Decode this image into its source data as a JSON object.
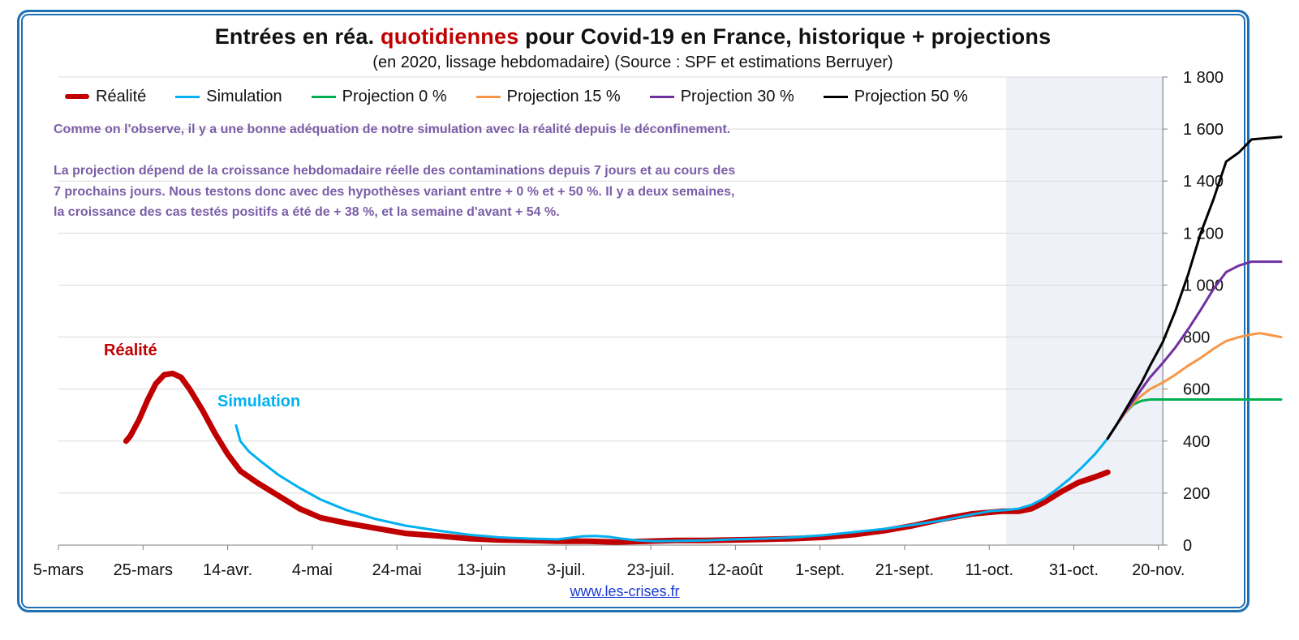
{
  "chart_data": {
    "type": "line",
    "title_parts": [
      "Entrées en réa. ",
      "quotidiennes",
      " pour Covid-19 en France, historique + projections"
    ],
    "subtitle": "(en 2020, lissage hebdomadaire) (Source : SPF et estimations Berruyer)",
    "xlabel": "",
    "ylabel": "",
    "x_tick_labels": [
      "5-mars",
      "25-mars",
      "14-avr.",
      "4-mai",
      "24-mai",
      "13-juin",
      "3-juil.",
      "23-juil.",
      "12-août",
      "1-sept.",
      "21-sept.",
      "11-oct.",
      "31-oct.",
      "20-nov."
    ],
    "x_range_days": [
      0,
      261
    ],
    "ylim": [
      0,
      1800
    ],
    "y_ticks": [
      0,
      200,
      400,
      600,
      800,
      1000,
      1200,
      1400,
      1600,
      1800
    ],
    "y_tick_labels": [
      "0",
      "200",
      "400",
      "600",
      "800",
      "1 000",
      "1 200",
      "1 400",
      "1 600",
      "1 800"
    ],
    "y_axis_position": "right",
    "grid": true,
    "legend_position": "top-left",
    "projection_shade_days": [
      224,
      261
    ],
    "projection_shade_color": "#eef2f8",
    "series": [
      {
        "name": "Réalité",
        "color": "#c00000",
        "width": 7,
        "points": [
          [
            16,
            400
          ],
          [
            17,
            420
          ],
          [
            19,
            480
          ],
          [
            21,
            555
          ],
          [
            23,
            620
          ],
          [
            25,
            655
          ],
          [
            27,
            660
          ],
          [
            29,
            645
          ],
          [
            31,
            600
          ],
          [
            34,
            520
          ],
          [
            37,
            430
          ],
          [
            40,
            350
          ],
          [
            43,
            285
          ],
          [
            47,
            240
          ],
          [
            52,
            190
          ],
          [
            57,
            140
          ],
          [
            62,
            105
          ],
          [
            68,
            85
          ],
          [
            75,
            65
          ],
          [
            82,
            45
          ],
          [
            90,
            35
          ],
          [
            97,
            25
          ],
          [
            104,
            20
          ],
          [
            111,
            18
          ],
          [
            118,
            15
          ],
          [
            125,
            15
          ],
          [
            132,
            12
          ],
          [
            139,
            15
          ],
          [
            146,
            18
          ],
          [
            153,
            18
          ],
          [
            160,
            20
          ],
          [
            167,
            22
          ],
          [
            174,
            25
          ],
          [
            181,
            30
          ],
          [
            188,
            40
          ],
          [
            195,
            55
          ],
          [
            202,
            75
          ],
          [
            209,
            100
          ],
          [
            216,
            120
          ],
          [
            223,
            130
          ],
          [
            227,
            130
          ],
          [
            230,
            140
          ],
          [
            233,
            165
          ],
          [
            237,
            205
          ],
          [
            241,
            240
          ],
          [
            245,
            262
          ],
          [
            248,
            280
          ]
        ]
      },
      {
        "name": "Simulation",
        "color": "#00b0f0",
        "width": 3,
        "points": [
          [
            42,
            460
          ],
          [
            43,
            400
          ],
          [
            45,
            360
          ],
          [
            48,
            320
          ],
          [
            52,
            270
          ],
          [
            57,
            220
          ],
          [
            62,
            175
          ],
          [
            68,
            135
          ],
          [
            75,
            100
          ],
          [
            82,
            75
          ],
          [
            90,
            55
          ],
          [
            97,
            40
          ],
          [
            104,
            30
          ],
          [
            111,
            25
          ],
          [
            118,
            22
          ],
          [
            121,
            28
          ],
          [
            124,
            34
          ],
          [
            127,
            35
          ],
          [
            130,
            32
          ],
          [
            133,
            25
          ],
          [
            137,
            18
          ],
          [
            141,
            15
          ],
          [
            146,
            16
          ],
          [
            153,
            18
          ],
          [
            160,
            22
          ],
          [
            167,
            25
          ],
          [
            174,
            30
          ],
          [
            181,
            38
          ],
          [
            188,
            50
          ],
          [
            195,
            62
          ],
          [
            202,
            78
          ],
          [
            209,
            95
          ],
          [
            216,
            118
          ],
          [
            220,
            130
          ],
          [
            224,
            135
          ],
          [
            227,
            140
          ],
          [
            230,
            155
          ],
          [
            233,
            180
          ],
          [
            236,
            215
          ],
          [
            239,
            255
          ],
          [
            242,
            300
          ],
          [
            245,
            350
          ],
          [
            248,
            410
          ]
        ]
      },
      {
        "name": "Projection 0 %",
        "color": "#00b050",
        "width": 3,
        "points": [
          [
            248,
            410
          ],
          [
            250,
            460
          ],
          [
            252,
            505
          ],
          [
            254,
            540
          ],
          [
            256,
            555
          ],
          [
            258,
            560
          ],
          [
            260,
            560
          ],
          [
            264,
            560
          ],
          [
            268,
            560
          ],
          [
            272,
            560
          ],
          [
            276,
            560
          ],
          [
            280,
            560
          ],
          [
            284,
            560
          ],
          [
            289,
            560
          ]
        ]
      },
      {
        "name": "Projection 15 %",
        "color": "#f79646",
        "width": 3,
        "points": [
          [
            248,
            410
          ],
          [
            250,
            460
          ],
          [
            252,
            505
          ],
          [
            254,
            545
          ],
          [
            256,
            575
          ],
          [
            258,
            600
          ],
          [
            261,
            625
          ],
          [
            264,
            655
          ],
          [
            267,
            690
          ],
          [
            270,
            720
          ],
          [
            273,
            755
          ],
          [
            276,
            785
          ],
          [
            279,
            800
          ],
          [
            282,
            810
          ],
          [
            284,
            815
          ],
          [
            289,
            800
          ]
        ]
      },
      {
        "name": "Projection 30 %",
        "color": "#7030a0",
        "width": 3,
        "points": [
          [
            248,
            410
          ],
          [
            250,
            460
          ],
          [
            252,
            510
          ],
          [
            254,
            555
          ],
          [
            256,
            600
          ],
          [
            258,
            645
          ],
          [
            261,
            700
          ],
          [
            264,
            760
          ],
          [
            267,
            830
          ],
          [
            270,
            905
          ],
          [
            273,
            985
          ],
          [
            276,
            1050
          ],
          [
            279,
            1075
          ],
          [
            282,
            1090
          ],
          [
            289,
            1090
          ]
        ]
      },
      {
        "name": "Projection 50 %",
        "color": "#000000",
        "width": 3,
        "points": [
          [
            248,
            410
          ],
          [
            250,
            460
          ],
          [
            252,
            515
          ],
          [
            254,
            570
          ],
          [
            256,
            625
          ],
          [
            258,
            690
          ],
          [
            261,
            780
          ],
          [
            264,
            900
          ],
          [
            267,
            1040
          ],
          [
            270,
            1200
          ],
          [
            273,
            1330
          ],
          [
            276,
            1475
          ],
          [
            279,
            1510
          ],
          [
            282,
            1560
          ],
          [
            289,
            1570
          ]
        ]
      }
    ],
    "labels": [
      {
        "text": "Réalité",
        "color": "#c00000"
      },
      {
        "text": "Simulation",
        "color": "#00b0f0"
      }
    ]
  },
  "annotation": {
    "line1": "Comme on l'observe, il y a une bonne adéquation de notre simulation avec la réalité depuis le déconfinement.",
    "para2": [
      "La projection dépend de la croissance hebdomadaire réelle des contaminations depuis 7 jours et au cours des",
      "7 prochains jours. Nous testons donc avec des hypothèses variant entre + 0 % et + 50 %. Il y a deux semaines,",
      "la croissance des cas testés positifs a été de + 38 %, et la semaine d'avant + 54 %."
    ]
  },
  "source_link": "www.les-crises.fr"
}
